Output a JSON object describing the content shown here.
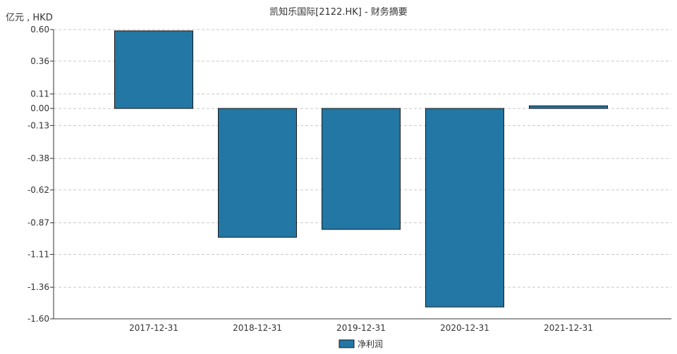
{
  "chart_data": {
    "type": "bar",
    "title": "凯知乐国际[2122.HK] - 财务摘要",
    "ylabel": "亿元 , HKD",
    "xlabel": "",
    "categories": [
      "2017-12-31",
      "2018-12-31",
      "2019-12-31",
      "2020-12-31",
      "2021-12-31"
    ],
    "series": [
      {
        "name": "净利润",
        "values": [
          0.59,
          -0.98,
          -0.92,
          -1.51,
          0.02
        ]
      }
    ],
    "yticks": [
      "0.60",
      "0.36",
      "0.11",
      "0.00",
      "-0.13",
      "-0.38",
      "-0.62",
      "-0.87",
      "-1.11",
      "-1.36",
      "-1.60"
    ],
    "ylim": [
      -1.6,
      0.6
    ],
    "grid": true,
    "legend_position": "bottom-center",
    "colors": {
      "bar": "#2277a4",
      "bar_stroke": "#1a1a1a",
      "grid": "#c8c8c8",
      "axis": "#333333"
    }
  }
}
